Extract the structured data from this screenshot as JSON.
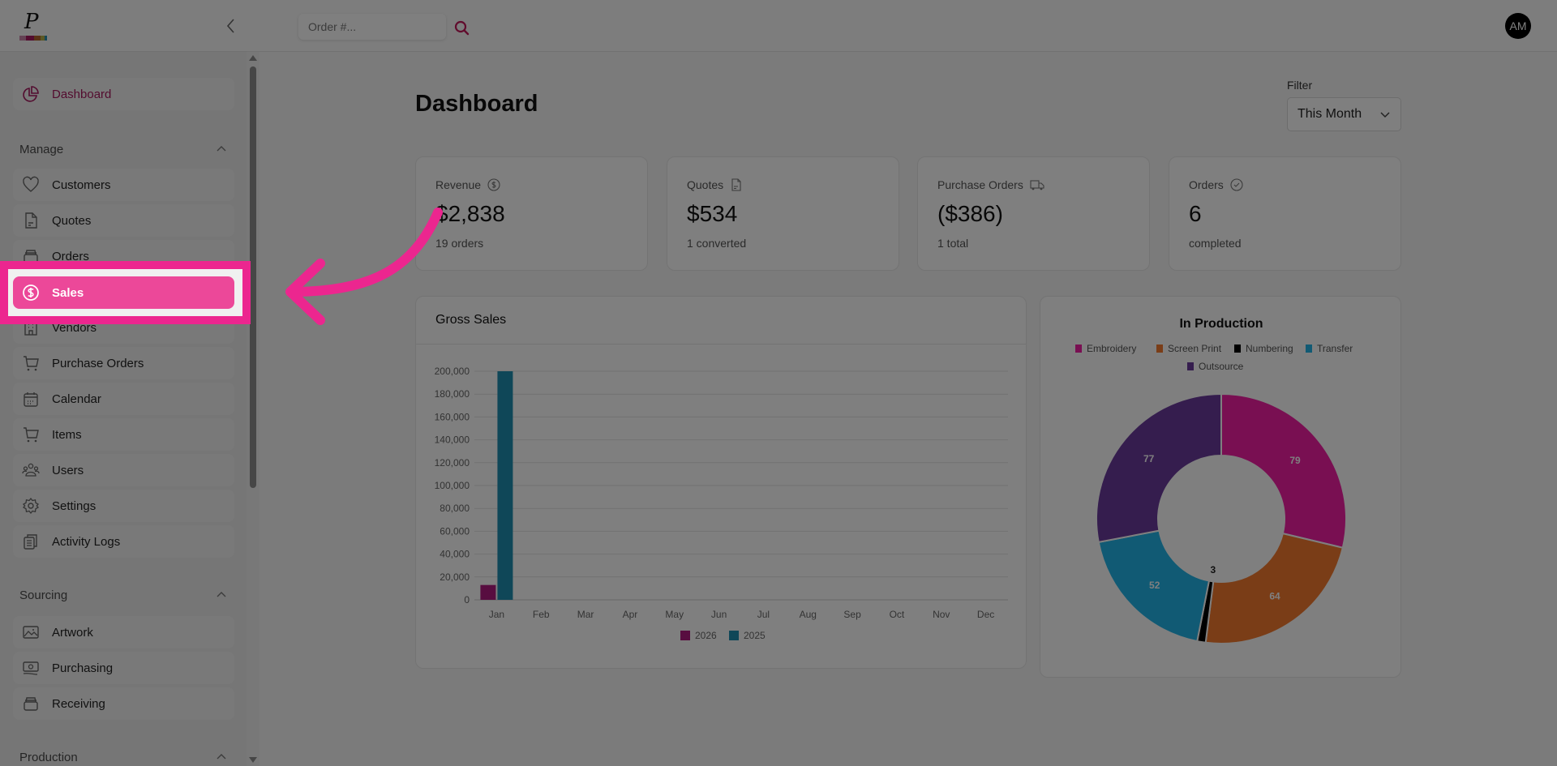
{
  "topbar": {
    "search_placeholder": "Order #...",
    "avatar_initials": "AM",
    "logo_letter": "P",
    "logo_colors": [
      "#c985a8",
      "#a6185e",
      "#b3642d",
      "#b7b14a",
      "#2a8fb0"
    ]
  },
  "sidebar": {
    "dashboard": {
      "label": "Dashboard",
      "icon": "pie-chart-icon"
    },
    "sections": [
      {
        "title": "Manage",
        "items": [
          {
            "label": "Customers",
            "icon": "heart-icon"
          },
          {
            "label": "Quotes",
            "icon": "document-icon"
          },
          {
            "label": "Orders",
            "icon": "inbox-stack-icon"
          },
          {
            "label": "Sales",
            "icon": "dollar-circle-icon"
          },
          {
            "label": "Vendors",
            "icon": "building-icon"
          },
          {
            "label": "Purchase Orders",
            "icon": "cart-icon"
          },
          {
            "label": "Calendar",
            "icon": "calendar-icon"
          },
          {
            "label": "Items",
            "icon": "cart-icon"
          },
          {
            "label": "Users",
            "icon": "users-icon"
          },
          {
            "label": "Settings",
            "icon": "gear-icon"
          },
          {
            "label": "Activity Logs",
            "icon": "clipboard-icon"
          }
        ]
      },
      {
        "title": "Sourcing",
        "items": [
          {
            "label": "Artwork",
            "icon": "image-icon"
          },
          {
            "label": "Purchasing",
            "icon": "money-icon"
          },
          {
            "label": "Receiving",
            "icon": "inbox-stack-icon"
          }
        ]
      },
      {
        "title": "Production",
        "items": []
      }
    ]
  },
  "main": {
    "title": "Dashboard",
    "filter": {
      "label": "Filter",
      "value": "This Month"
    },
    "stats": [
      {
        "label": "Revenue",
        "icon": "dollar-circle-icon",
        "value": "$2,838",
        "sub": "19 orders"
      },
      {
        "label": "Quotes",
        "icon": "document-icon",
        "value": "$534",
        "sub": "1 converted"
      },
      {
        "label": "Purchase Orders",
        "icon": "truck-icon",
        "value": "($386)",
        "sub": "1 total"
      },
      {
        "label": "Orders",
        "icon": "check-circle-icon",
        "value": "6",
        "sub": "completed"
      }
    ]
  },
  "colors": {
    "accent": "#ec4899",
    "highlight": "#ec268f",
    "active_text": "#a6185e"
  },
  "chart_data": [
    {
      "type": "bar",
      "title": "Gross Sales",
      "categories": [
        "Jan",
        "Feb",
        "Mar",
        "Apr",
        "May",
        "Jun",
        "Jul",
        "Aug",
        "Sep",
        "Oct",
        "Nov",
        "Dec"
      ],
      "series": [
        {
          "name": "2026",
          "color": "#b01a80",
          "values": [
            13000,
            0,
            0,
            0,
            0,
            0,
            0,
            0,
            0,
            0,
            0,
            0
          ]
        },
        {
          "name": "2025",
          "color": "#1e8fb0",
          "values": [
            200000,
            0,
            0,
            0,
            0,
            0,
            0,
            0,
            0,
            0,
            0,
            0
          ]
        }
      ],
      "yticks": [
        "0",
        "20,000",
        "40,000",
        "60,000",
        "80,000",
        "100,000",
        "120,000",
        "140,000",
        "160,000",
        "180,000",
        "200,000"
      ],
      "ylim": [
        0,
        200000
      ],
      "grid": true,
      "legend": "bottom"
    },
    {
      "type": "pie",
      "title": "In Production",
      "donut": true,
      "slices": [
        {
          "label": "Embroidery",
          "value": 79,
          "color": "#f21ea5"
        },
        {
          "label": "Screen Print",
          "value": 64,
          "color": "#f47a2e"
        },
        {
          "label": "Numbering",
          "value": 3,
          "color": "#000000"
        },
        {
          "label": "Transfer",
          "value": 52,
          "color": "#23b5e8"
        },
        {
          "label": "Outsource",
          "value": 77,
          "color": "#6a3a9c"
        }
      ],
      "legend": "top"
    }
  ]
}
